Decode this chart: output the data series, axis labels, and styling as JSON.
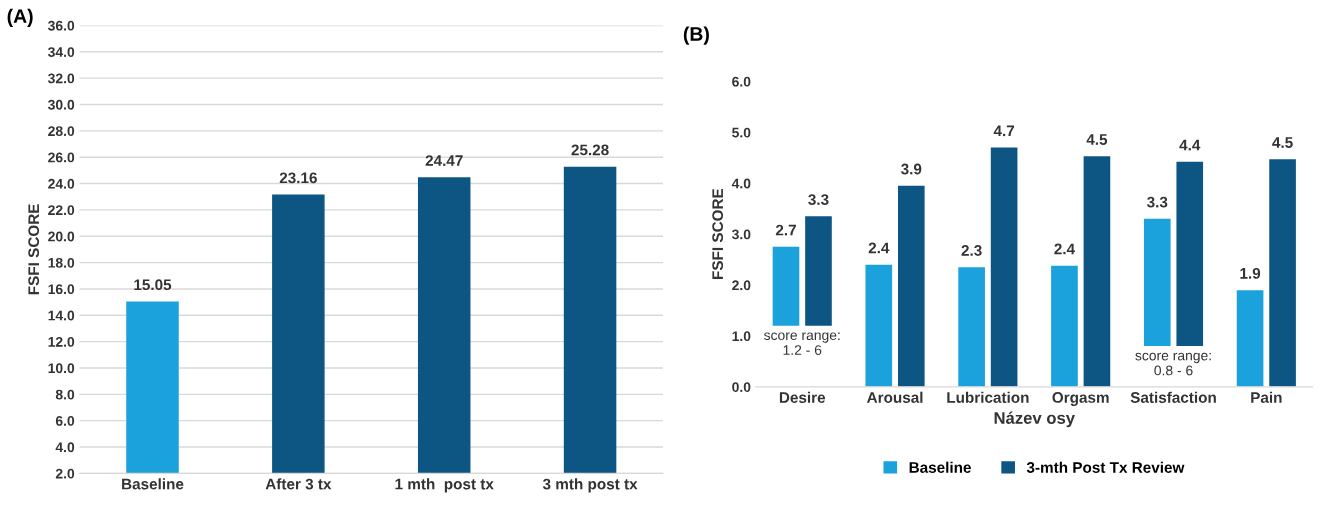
{
  "chart_data": [
    {
      "type": "bar",
      "title": "(A)",
      "ylabel": "FSFI SCORE",
      "categories": [
        "Baseline",
        "After 3 tx",
        "1 mth  post tx",
        "3 mth post tx"
      ],
      "values": [
        15.05,
        23.16,
        24.47,
        25.28
      ],
      "colors": [
        "#1ba1db",
        "#0d5583",
        "#0d5583",
        "#0d5583"
      ],
      "ylim": [
        2.0,
        36.0
      ],
      "yticks": [
        {
          "value": 2,
          "label": "2.0"
        },
        {
          "value": 4,
          "label": "4.0"
        },
        {
          "value": 6,
          "label": "6.0"
        },
        {
          "value": 8,
          "label": "8.0"
        },
        {
          "value": 10,
          "label": "10.0"
        },
        {
          "value": 12,
          "label": "12.0"
        },
        {
          "value": 14,
          "label": "14.0"
        },
        {
          "value": 16,
          "label": "16.0"
        },
        {
          "value": 18,
          "label": "18.0"
        },
        {
          "value": 20,
          "label": "20.0"
        },
        {
          "value": 22,
          "label": "22.0"
        },
        {
          "value": 24,
          "label": "24.0"
        },
        {
          "value": 26,
          "label": "26.0"
        },
        {
          "value": 28,
          "label": "28.0"
        },
        {
          "value": 30,
          "label": "30.0"
        },
        {
          "value": 32,
          "label": "32.0"
        },
        {
          "value": 34,
          "label": "34.0"
        },
        {
          "value": 36,
          "label": "36.0"
        }
      ],
      "grid": "y",
      "data_labels": true
    },
    {
      "type": "bar",
      "title": "(B)",
      "ylabel": "FSFI SCORE",
      "xlabel": "Název osy",
      "categories": [
        "Desire",
        "Arousal",
        "Lubrication",
        "Orgasm",
        "Satisfaction",
        "Pain"
      ],
      "series": [
        {
          "name": "Baseline",
          "color": "#1ba1db",
          "base": [
            1.2,
            0,
            0,
            0,
            0.8,
            0
          ],
          "values": [
            1.55,
            2.4,
            2.35,
            2.38,
            2.5,
            1.9
          ],
          "value_labels": [
            "2.7",
            "2.4",
            "2.3",
            "2.4",
            "3.3",
            "1.9"
          ]
        },
        {
          "name": "3-mth Post Tx Review",
          "color": "#0d5583",
          "base": [
            1.2,
            0,
            0,
            0,
            0.8,
            0
          ],
          "values": [
            2.15,
            3.95,
            4.7,
            4.53,
            3.62,
            4.47
          ],
          "value_labels": [
            "3.3",
            "3.9",
            "4.7",
            "4.5",
            "4.4",
            "4.5"
          ]
        }
      ],
      "ylim": [
        0,
        6.0
      ],
      "yticks": [
        {
          "value": 0,
          "label": "0.0"
        },
        {
          "value": 1,
          "label": "1.0"
        },
        {
          "value": 2,
          "label": "2.0"
        },
        {
          "value": 3,
          "label": "3.0"
        },
        {
          "value": 4,
          "label": "4.0"
        },
        {
          "value": 5,
          "label": "5.0"
        },
        {
          "value": 6,
          "label": "6.0"
        }
      ],
      "annotations": [
        "score range:\n1.2 - 6",
        "score range:\n0.8 - 6"
      ],
      "legend": "bottom"
    }
  ]
}
